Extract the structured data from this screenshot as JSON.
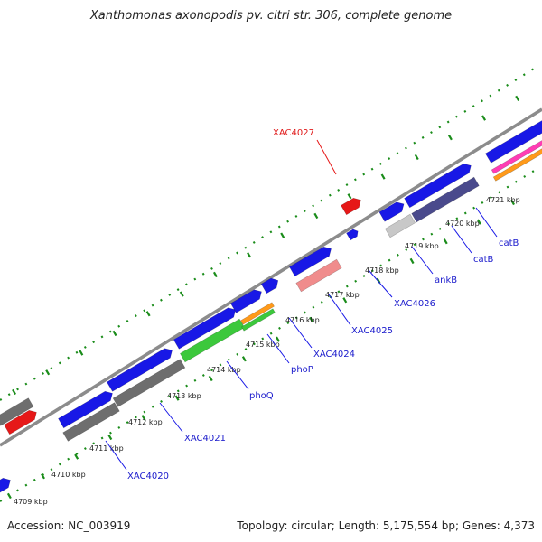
{
  "title": "Xanthomonas axonopodis pv. citri str. 306, complete genome",
  "accession": "Accession: NC_003919",
  "summary": "Topology: circular; Length: 5,175,554 bp; Genes: 4,373",
  "colors": {
    "backbone": "#8c8c8c",
    "forward_cds": "#1818e6",
    "highlight": "#e61818",
    "gray": "#6e6e6e",
    "green": "#3cc83c",
    "pink": "#f08c8c",
    "slate": "#4a4a8c",
    "light_gray": "#c8c8c8",
    "orange": "#ff9a1a",
    "magenta": "#ff3cb4",
    "tick": "#1a8c1a"
  },
  "kbp_ticks": [
    {
      "label": "4709 kbp"
    },
    {
      "label": "4710 kbp"
    },
    {
      "label": "4711 kbp"
    },
    {
      "label": "4712 kbp"
    },
    {
      "label": "4713 kbp"
    },
    {
      "label": "4714 kbp"
    },
    {
      "label": "4715 kbp"
    },
    {
      "label": "4716 kbp"
    },
    {
      "label": "4717 kbp"
    },
    {
      "label": "4718 kbp"
    },
    {
      "label": "4719 kbp"
    },
    {
      "label": "4720 kbp"
    },
    {
      "label": "4721 kbp"
    }
  ],
  "gene_labels": [
    {
      "text": "XAC4020"
    },
    {
      "text": "XAC4021"
    },
    {
      "text": "phoQ"
    },
    {
      "text": "phoP"
    },
    {
      "text": "XAC4024"
    },
    {
      "text": "XAC4025"
    },
    {
      "text": "XAC4026"
    },
    {
      "text": "ankB"
    },
    {
      "text": "catB"
    },
    {
      "text": "catB"
    },
    {
      "text": "XAC4027"
    }
  ]
}
